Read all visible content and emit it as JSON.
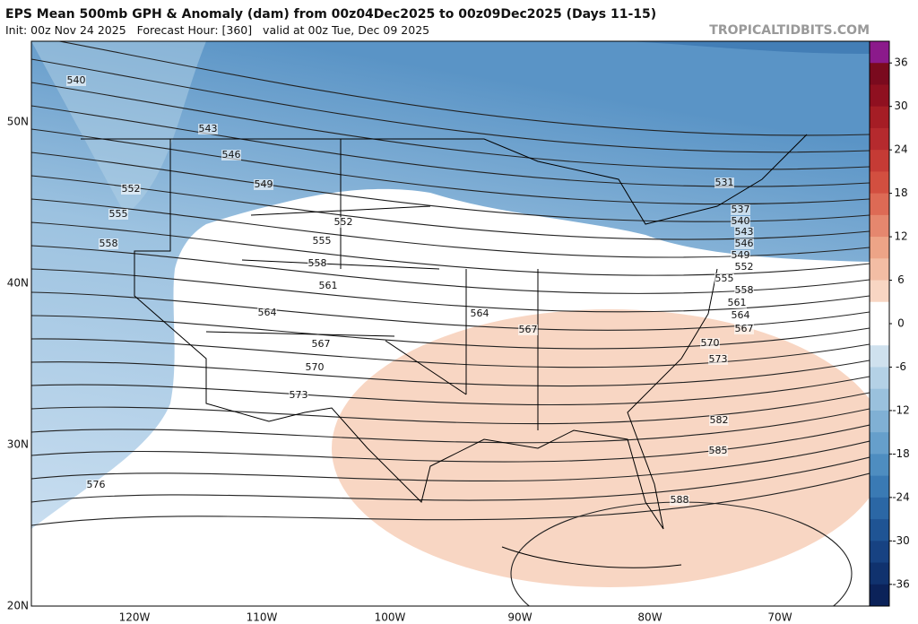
{
  "header": {
    "title": "EPS Mean 500mb GPH & Anomaly (dam) from 00z04Dec2025 to 00z09Dec2025 (Days 11-15)",
    "subtitle": "Init: 00z Nov 24 2025   Forecast Hour: [360]   valid at 00z Tue, Dec 09 2025",
    "site": "TROPICALTIDBITS.COM"
  },
  "map": {
    "latitude_labels": [
      "50N",
      "40N",
      "30N",
      "20N"
    ],
    "longitude_labels": [
      "120W",
      "110W",
      "100W",
      "90W",
      "80W",
      "70W"
    ],
    "contour_labels": [
      "540",
      "543",
      "546",
      "549",
      "552",
      "555",
      "558",
      "552",
      "555",
      "558",
      "561",
      "564",
      "567",
      "570",
      "573",
      "576",
      "564",
      "567",
      "531",
      "537",
      "540",
      "543",
      "546",
      "549",
      "552",
      "555",
      "558",
      "561",
      "564",
      "567",
      "570",
      "573",
      "582",
      "585",
      "588"
    ]
  },
  "colorbar": {
    "lim": [
      -39,
      39
    ],
    "ticks": [
      36,
      30,
      24,
      18,
      12,
      6,
      0,
      -6,
      -12,
      -18,
      -24,
      -30,
      -36
    ],
    "colors": [
      "#8b1a8b",
      "#7a0a1e",
      "#8f1020",
      "#a51d25",
      "#b52a2e",
      "#c53b35",
      "#d24f40",
      "#dd6a55",
      "#e5876e",
      "#eda487",
      "#f3bda4",
      "#f8d6c3",
      "#ffffff",
      "#ffffff",
      "#cfe1ee",
      "#b4d1e6",
      "#9ac1dd",
      "#80b0d4",
      "#669fcb",
      "#4e8dc0",
      "#3a7ab4",
      "#2b67a5",
      "#1f5494",
      "#174282",
      "#10326e",
      "#0b2259"
    ]
  }
}
